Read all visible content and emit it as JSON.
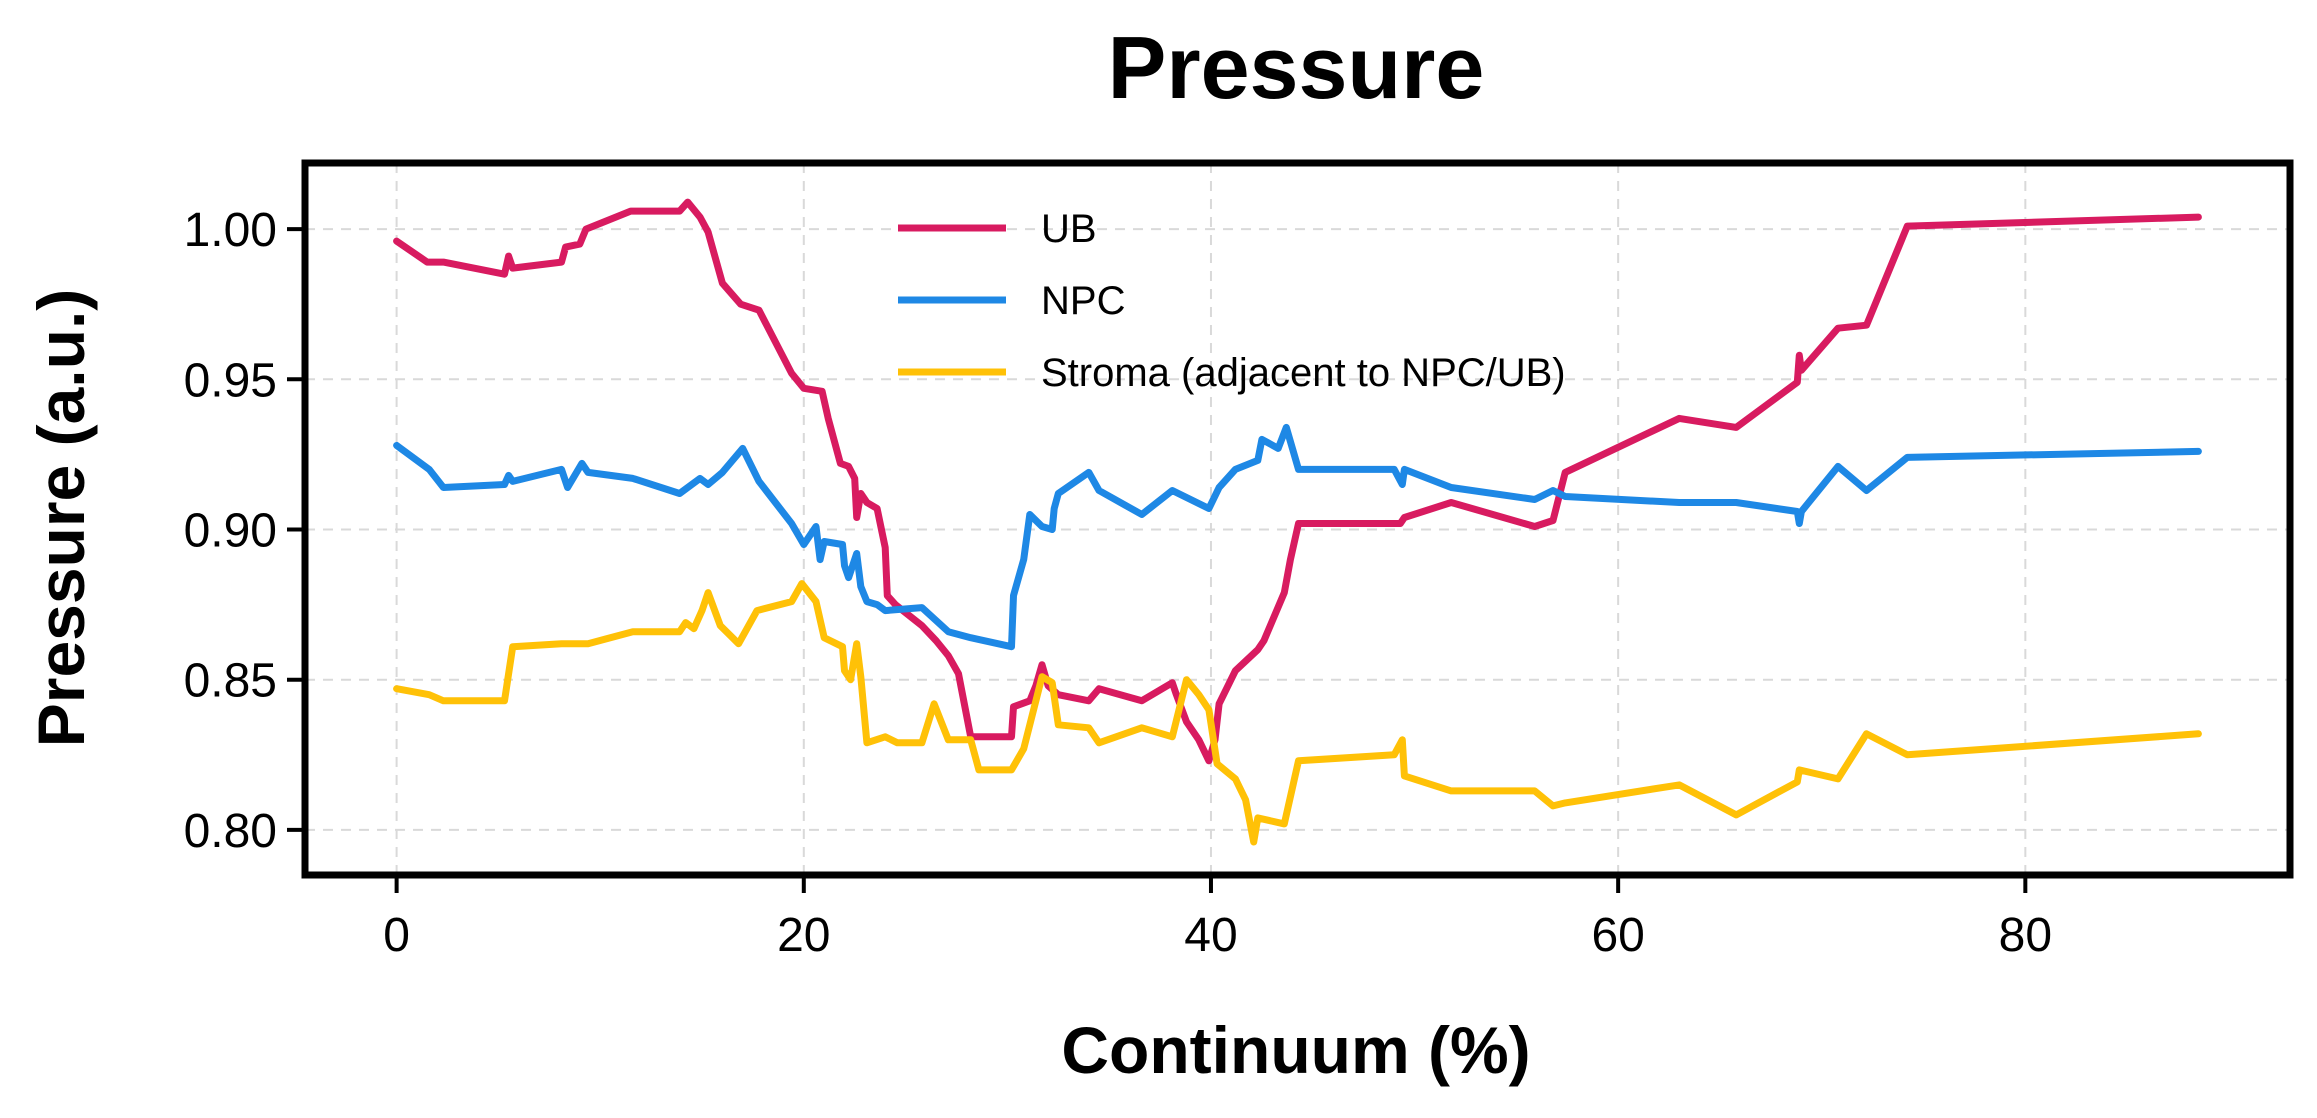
{
  "chart_data": {
    "type": "line",
    "title": "Pressure",
    "xlabel": "Continuum (%)",
    "ylabel": "Pressure (a.u.)",
    "xlim": [
      -4.5,
      93
    ],
    "ylim": [
      0.785,
      1.022
    ],
    "xticks": [
      0,
      20,
      40,
      60,
      80
    ],
    "yticks": [
      0.8,
      0.85,
      0.9,
      0.95,
      1.0
    ],
    "x_tick_labels": [
      "0",
      "20",
      "40",
      "60",
      "80"
    ],
    "y_tick_labels": [
      "0.80",
      "0.85",
      "0.90",
      "0.95",
      "1.00"
    ],
    "grid": true,
    "legend_position": "top-center",
    "series": [
      {
        "name": "UB",
        "color": "#d81b60",
        "points": [
          [
            0,
            0.996
          ],
          [
            1.5,
            0.989
          ],
          [
            2.3,
            0.989
          ],
          [
            5.3,
            0.985
          ],
          [
            5.5,
            0.991
          ],
          [
            5.7,
            0.987
          ],
          [
            8.1,
            0.989
          ],
          [
            8.3,
            0.994
          ],
          [
            9,
            0.995
          ],
          [
            9.3,
            1.0
          ],
          [
            11.5,
            1.006
          ],
          [
            13.9,
            1.006
          ],
          [
            14.3,
            1.009
          ],
          [
            14.9,
            1.004
          ],
          [
            15.3,
            0.999
          ],
          [
            16,
            0.982
          ],
          [
            16.9,
            0.975
          ],
          [
            17.8,
            0.973
          ],
          [
            19.4,
            0.952
          ],
          [
            20,
            0.947
          ],
          [
            20.9,
            0.946
          ],
          [
            21.2,
            0.937
          ],
          [
            21.8,
            0.922
          ],
          [
            22.2,
            0.921
          ],
          [
            22.5,
            0.917
          ],
          [
            22.6,
            0.904
          ],
          [
            22.8,
            0.912
          ],
          [
            23.1,
            0.909
          ],
          [
            23.6,
            0.907
          ],
          [
            24.0,
            0.894
          ],
          [
            24.1,
            0.878
          ],
          [
            24.5,
            0.875
          ],
          [
            25.8,
            0.868
          ],
          [
            26.5,
            0.863
          ],
          [
            27.1,
            0.858
          ],
          [
            27.6,
            0.852
          ],
          [
            28.2,
            0.831
          ],
          [
            30.2,
            0.831
          ],
          [
            30.3,
            0.841
          ],
          [
            31.1,
            0.843
          ],
          [
            31.4,
            0.848
          ],
          [
            31.7,
            0.855
          ],
          [
            32.0,
            0.848
          ],
          [
            32.5,
            0.845
          ],
          [
            34.0,
            0.843
          ],
          [
            34.5,
            0.847
          ],
          [
            36.6,
            0.843
          ],
          [
            38.1,
            0.849
          ],
          [
            38.3,
            0.845
          ],
          [
            38.8,
            0.836
          ],
          [
            39.4,
            0.83
          ],
          [
            39.9,
            0.823
          ],
          [
            40.2,
            0.83
          ],
          [
            40.4,
            0.842
          ],
          [
            41.2,
            0.853
          ],
          [
            42.3,
            0.86
          ],
          [
            42.6,
            0.863
          ],
          [
            43.6,
            0.879
          ],
          [
            43.9,
            0.89
          ],
          [
            44.3,
            0.902
          ],
          [
            49.3,
            0.902
          ],
          [
            49.5,
            0.904
          ],
          [
            51.8,
            0.909
          ],
          [
            55.9,
            0.901
          ],
          [
            56.8,
            0.903
          ],
          [
            57.4,
            0.919
          ],
          [
            63.0,
            0.937
          ],
          [
            65.8,
            0.934
          ],
          [
            68.8,
            0.949
          ],
          [
            68.9,
            0.958
          ],
          [
            69.0,
            0.953
          ],
          [
            70.8,
            0.967
          ],
          [
            72.2,
            0.968
          ],
          [
            74.2,
            1.001
          ],
          [
            88.5,
            1.004
          ]
        ]
      },
      {
        "name": "NPC",
        "color": "#1e88e5",
        "points": [
          [
            0,
            0.928
          ],
          [
            1.6,
            0.92
          ],
          [
            2.3,
            0.914
          ],
          [
            5.3,
            0.915
          ],
          [
            5.5,
            0.918
          ],
          [
            5.7,
            0.916
          ],
          [
            8.1,
            0.92
          ],
          [
            8.4,
            0.914
          ],
          [
            9.1,
            0.922
          ],
          [
            9.4,
            0.919
          ],
          [
            11.6,
            0.917
          ],
          [
            13.9,
            0.912
          ],
          [
            14.9,
            0.917
          ],
          [
            15.3,
            0.915
          ],
          [
            16.0,
            0.919
          ],
          [
            17.0,
            0.927
          ],
          [
            17.8,
            0.916
          ],
          [
            19.4,
            0.902
          ],
          [
            20.0,
            0.895
          ],
          [
            20.6,
            0.901
          ],
          [
            20.8,
            0.89
          ],
          [
            21.0,
            0.896
          ],
          [
            21.9,
            0.895
          ],
          [
            22.0,
            0.888
          ],
          [
            22.2,
            0.884
          ],
          [
            22.6,
            0.892
          ],
          [
            22.8,
            0.881
          ],
          [
            23.1,
            0.876
          ],
          [
            23.6,
            0.875
          ],
          [
            24.0,
            0.873
          ],
          [
            25.8,
            0.874
          ],
          [
            27.1,
            0.866
          ],
          [
            28.2,
            0.864
          ],
          [
            30.2,
            0.861
          ],
          [
            30.3,
            0.878
          ],
          [
            30.8,
            0.89
          ],
          [
            31.1,
            0.905
          ],
          [
            31.7,
            0.901
          ],
          [
            32.2,
            0.9
          ],
          [
            32.3,
            0.907
          ],
          [
            32.5,
            0.912
          ],
          [
            34.0,
            0.919
          ],
          [
            34.5,
            0.913
          ],
          [
            36.6,
            0.905
          ],
          [
            38.1,
            0.913
          ],
          [
            39.9,
            0.907
          ],
          [
            40.4,
            0.914
          ],
          [
            41.2,
            0.92
          ],
          [
            42.3,
            0.923
          ],
          [
            42.5,
            0.93
          ],
          [
            43.3,
            0.927
          ],
          [
            43.7,
            0.934
          ],
          [
            44.3,
            0.92
          ],
          [
            49.0,
            0.92
          ],
          [
            49.4,
            0.915
          ],
          [
            49.5,
            0.92
          ],
          [
            51.8,
            0.914
          ],
          [
            55.9,
            0.91
          ],
          [
            56.8,
            0.913
          ],
          [
            57.4,
            0.911
          ],
          [
            63.0,
            0.909
          ],
          [
            65.8,
            0.909
          ],
          [
            68.8,
            0.906
          ],
          [
            68.9,
            0.902
          ],
          [
            69.0,
            0.906
          ],
          [
            70.8,
            0.921
          ],
          [
            72.2,
            0.913
          ],
          [
            74.2,
            0.924
          ],
          [
            88.5,
            0.926
          ]
        ]
      },
      {
        "name": "Stroma (adjacent to NPC/UB)",
        "color": "#ffc107",
        "points": [
          [
            0,
            0.847
          ],
          [
            1.6,
            0.845
          ],
          [
            2.3,
            0.843
          ],
          [
            5.3,
            0.843
          ],
          [
            5.7,
            0.861
          ],
          [
            8.1,
            0.862
          ],
          [
            9.4,
            0.862
          ],
          [
            11.6,
            0.866
          ],
          [
            13.9,
            0.866
          ],
          [
            14.2,
            0.869
          ],
          [
            14.6,
            0.867
          ],
          [
            15.0,
            0.873
          ],
          [
            15.3,
            0.879
          ],
          [
            15.9,
            0.868
          ],
          [
            16.8,
            0.862
          ],
          [
            17.7,
            0.873
          ],
          [
            19.4,
            0.876
          ],
          [
            19.9,
            0.882
          ],
          [
            20.6,
            0.876
          ],
          [
            21.0,
            0.864
          ],
          [
            21.9,
            0.861
          ],
          [
            22.0,
            0.853
          ],
          [
            22.3,
            0.85
          ],
          [
            22.6,
            0.862
          ],
          [
            22.8,
            0.851
          ],
          [
            23.1,
            0.829
          ],
          [
            24.0,
            0.831
          ],
          [
            24.6,
            0.829
          ],
          [
            25.8,
            0.829
          ],
          [
            26.4,
            0.842
          ],
          [
            27.1,
            0.83
          ],
          [
            28.2,
            0.83
          ],
          [
            28.6,
            0.82
          ],
          [
            30.2,
            0.82
          ],
          [
            30.8,
            0.827
          ],
          [
            31.7,
            0.851
          ],
          [
            32.2,
            0.849
          ],
          [
            32.5,
            0.835
          ],
          [
            34.0,
            0.834
          ],
          [
            34.5,
            0.829
          ],
          [
            36.6,
            0.834
          ],
          [
            38.1,
            0.831
          ],
          [
            38.8,
            0.85
          ],
          [
            39.4,
            0.845
          ],
          [
            39.9,
            0.84
          ],
          [
            40.3,
            0.822
          ],
          [
            41.2,
            0.817
          ],
          [
            41.7,
            0.81
          ],
          [
            42.1,
            0.796
          ],
          [
            42.3,
            0.804
          ],
          [
            43.6,
            0.802
          ],
          [
            44.3,
            0.823
          ],
          [
            49.0,
            0.825
          ],
          [
            49.4,
            0.83
          ],
          [
            49.5,
            0.818
          ],
          [
            51.8,
            0.813
          ],
          [
            55.9,
            0.813
          ],
          [
            56.8,
            0.808
          ],
          [
            57.4,
            0.809
          ],
          [
            63.0,
            0.815
          ],
          [
            65.8,
            0.805
          ],
          [
            68.8,
            0.816
          ],
          [
            68.9,
            0.82
          ],
          [
            70.8,
            0.817
          ],
          [
            72.2,
            0.832
          ],
          [
            74.2,
            0.825
          ],
          [
            88.5,
            0.832
          ]
        ]
      }
    ]
  }
}
